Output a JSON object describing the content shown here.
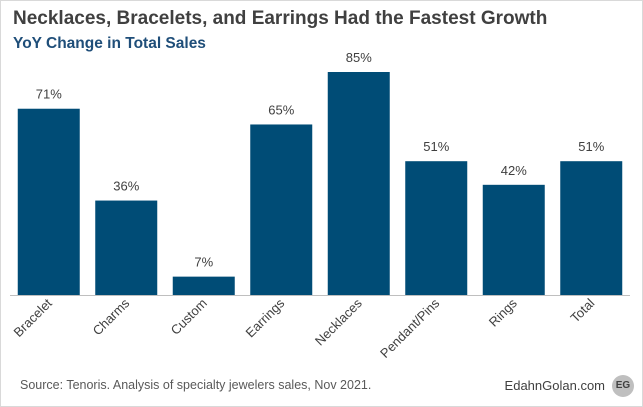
{
  "header": {
    "title": "Necklaces, Bracelets, and Earrings Had the Fastest Growth",
    "subtitle": "YoY Change in Total Sales"
  },
  "footer": {
    "source": "Source: Tenoris.  Analysis of specialty jewelers sales, Nov 2021.",
    "brand": "EdahnGolan.com",
    "logo_text": "EG"
  },
  "colors": {
    "bar": "#004c76",
    "axis": "#bfbfbf",
    "label": "#404040"
  },
  "chart_data": {
    "type": "bar",
    "title": "Necklaces, Bracelets, and Earrings Had the Fastest Growth",
    "subtitle": "YoY Change in Total Sales",
    "categories": [
      "Bracelet",
      "Charms",
      "Custom",
      "Earrings",
      "Necklaces",
      "Pendant/Pins",
      "Rings",
      "Total"
    ],
    "values": [
      71,
      36,
      7,
      65,
      85,
      51,
      42,
      51
    ],
    "value_labels": [
      "71%",
      "36%",
      "7%",
      "65%",
      "85%",
      "51%",
      "42%",
      "51%"
    ],
    "unit": "%",
    "xlabel": "",
    "ylabel": "",
    "ylim": [
      0,
      85
    ],
    "grid": false,
    "legend": "none"
  }
}
